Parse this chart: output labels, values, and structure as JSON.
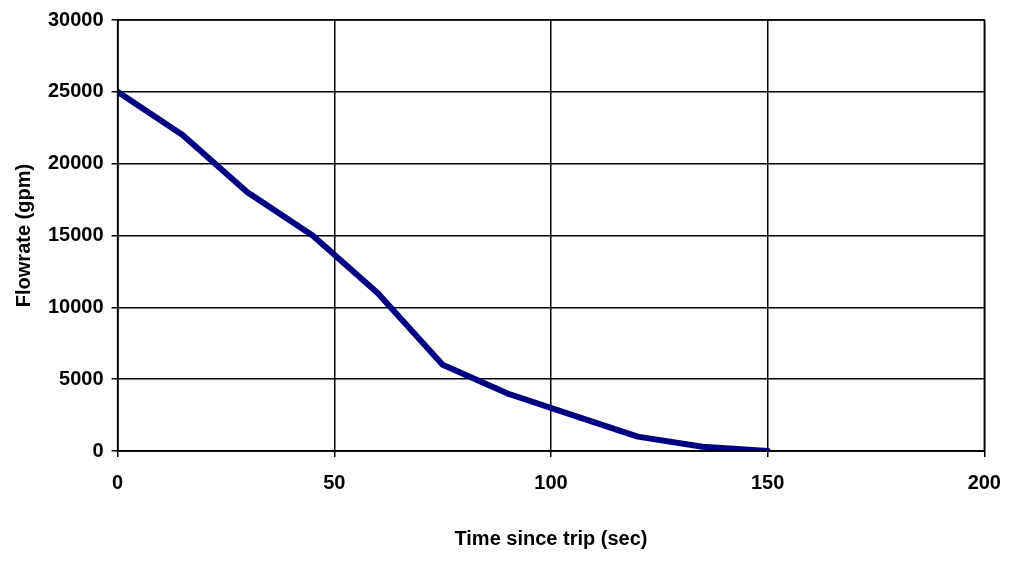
{
  "chart_data": {
    "type": "line",
    "xlabel": "Time since trip (sec)",
    "ylabel": "Flowrate (gpm)",
    "x": [
      0,
      15,
      30,
      45,
      60,
      75,
      90,
      105,
      120,
      135,
      150
    ],
    "series": [
      {
        "color": "#000080",
        "values": [
          25000,
          22000,
          18000,
          15000,
          11000,
          6000,
          4000,
          2500,
          1000,
          300,
          0
        ]
      }
    ],
    "xlim": [
      0,
      200
    ],
    "xticks": [
      0,
      50,
      100,
      150,
      200
    ],
    "ylim": [
      0,
      30000
    ],
    "yticks": [
      0,
      5000,
      10000,
      15000,
      20000,
      25000,
      30000
    ],
    "grid": true,
    "legend": false,
    "marker": "none",
    "line_style": "solid"
  }
}
